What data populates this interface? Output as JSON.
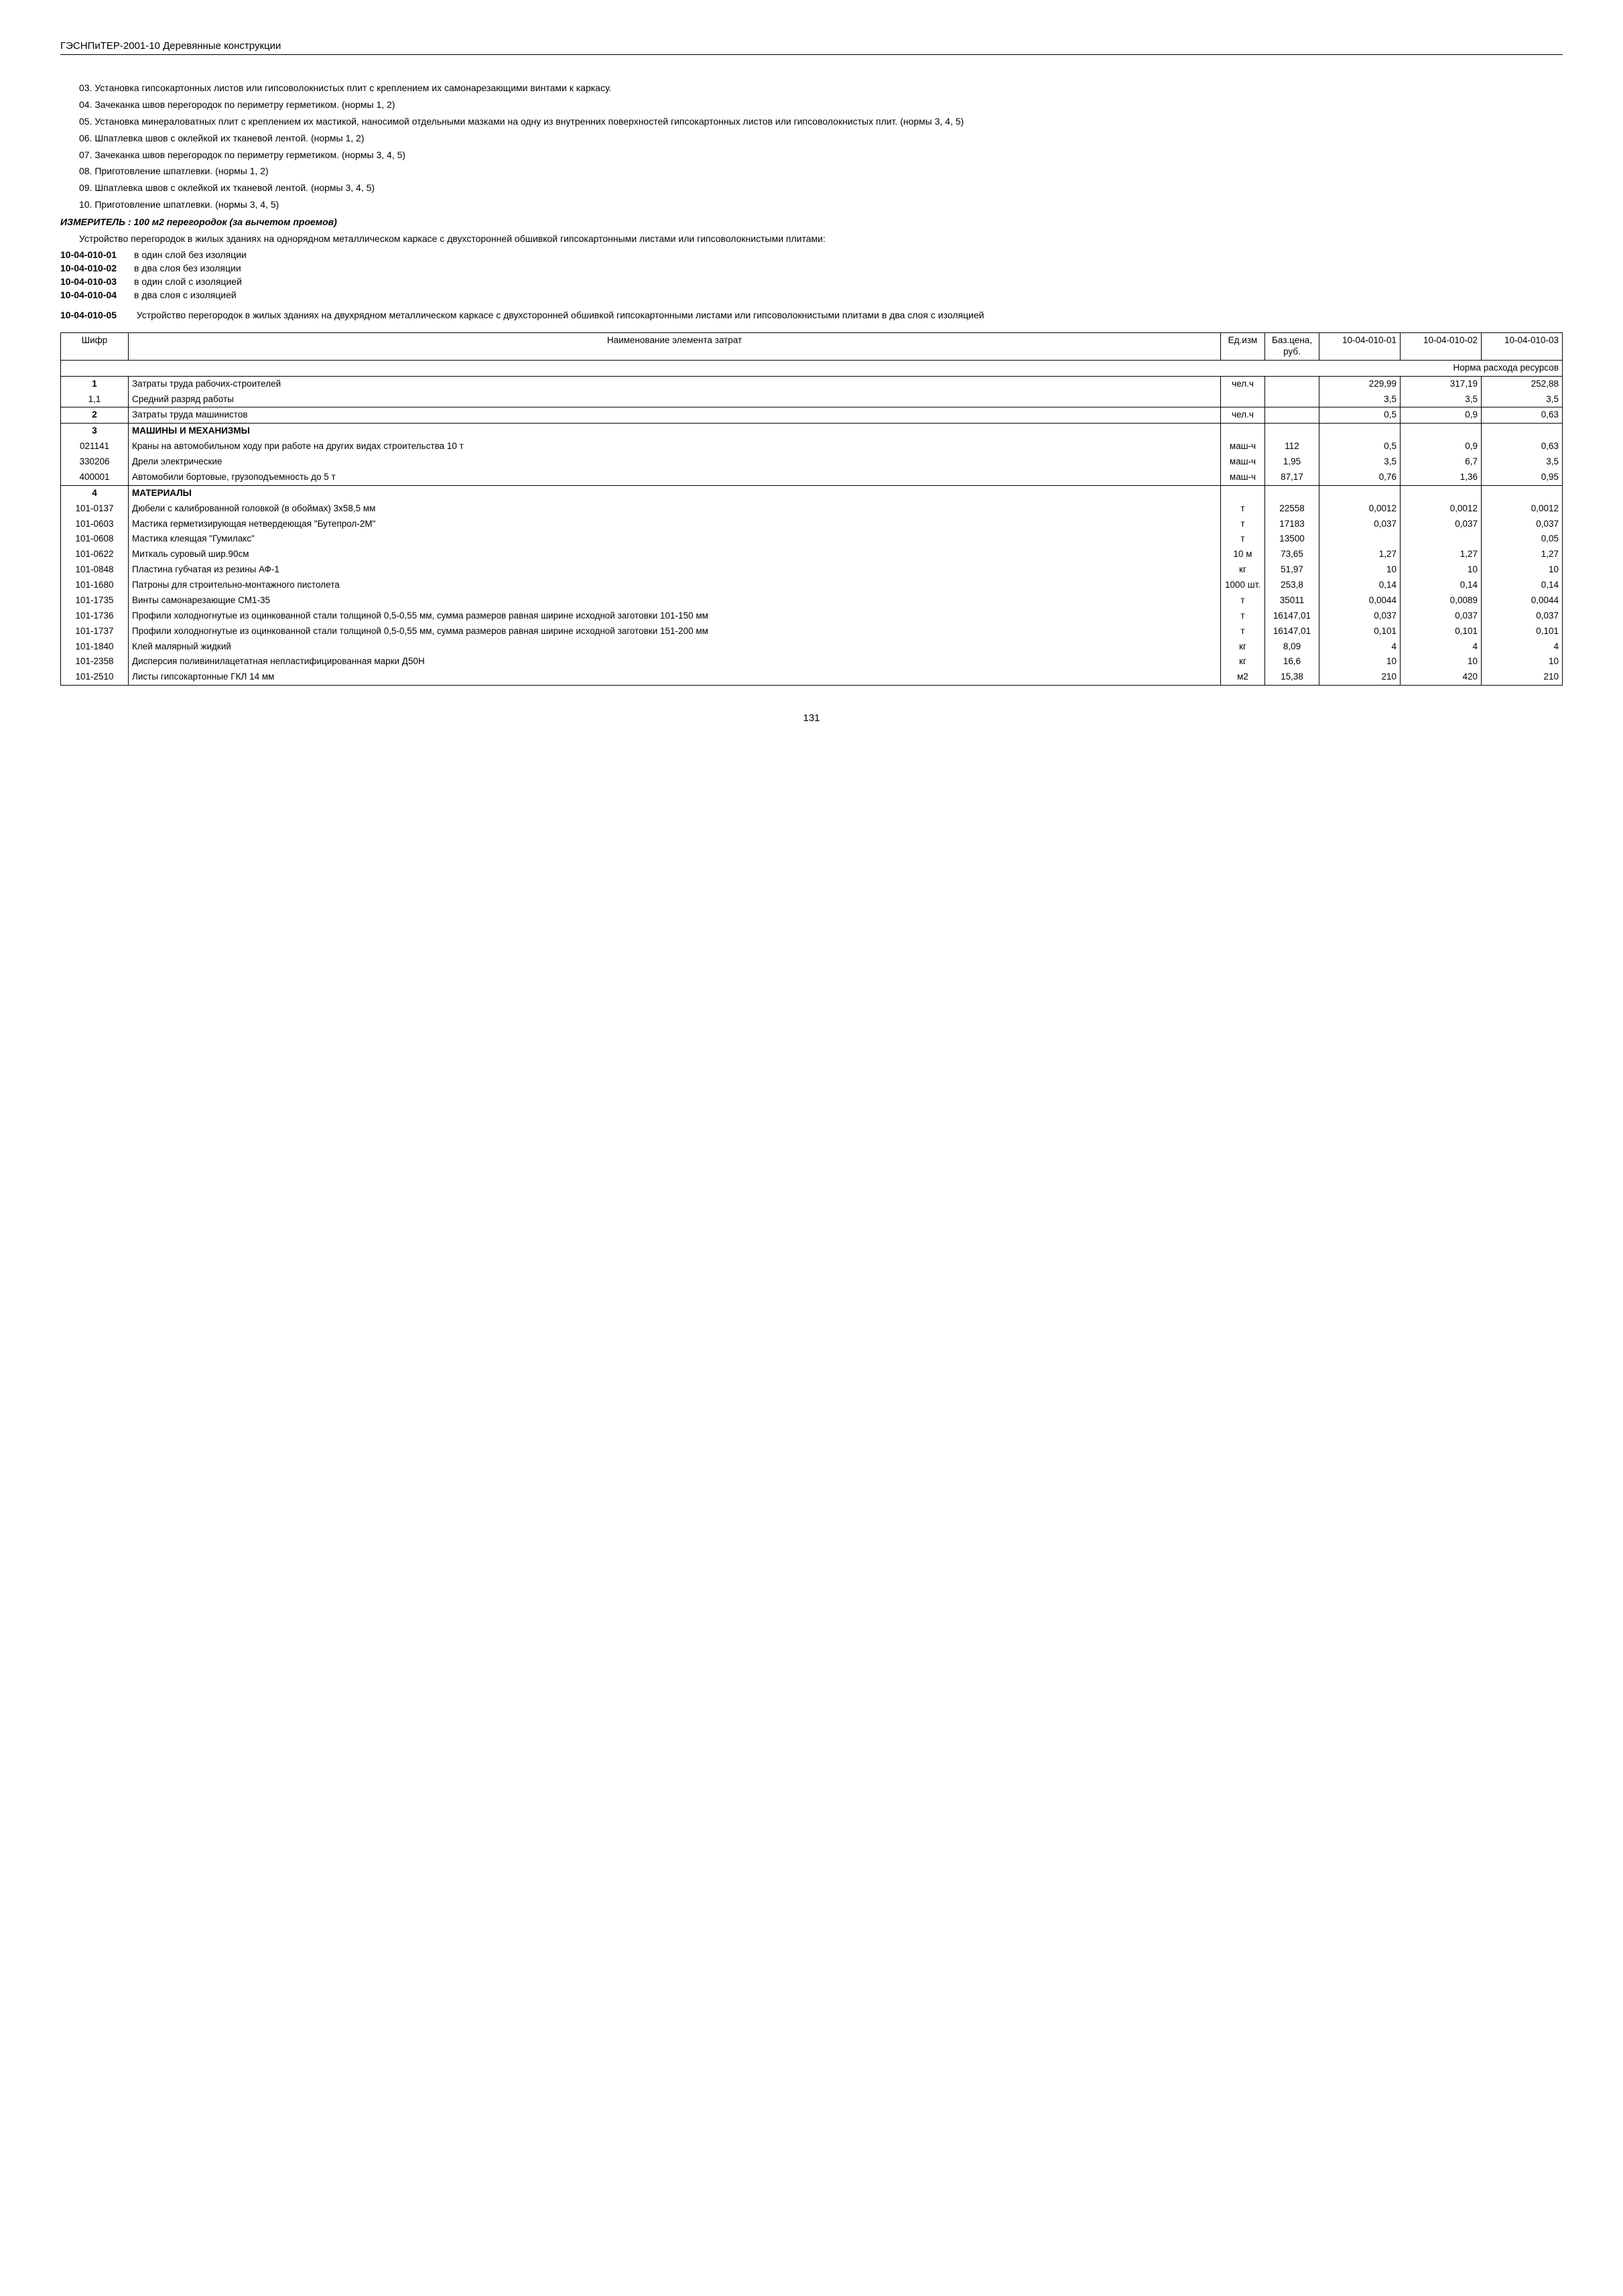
{
  "header": "ГЭСНПиТЕР-2001-10 Деревянные конструкции",
  "paragraphs": [
    "03. Установка гипсокартонных листов или гипсоволокнистых плит с креплением их самонарезающими винтами к каркасу.",
    "04. Зачеканка швов перегородок по периметру герметиком. (нормы 1, 2)",
    "05. Установка минераловатных плит с креплением их мастикой, наносимой отдельными мазками на одну из внутренних поверхностей гипсокартонных листов или гипсоволокнистых плит. (нормы 3, 4, 5)",
    "06. Шпатлевка швов с оклейкой их тканевой лентой. (нормы 1, 2)",
    "07. Зачеканка швов перегородок по периметру герметиком. (нормы 3, 4, 5)",
    "08. Приготовление шпатлевки. (нормы 1, 2)",
    "09. Шпатлевка швов с оклейкой их тканевой лентой. (нормы 3, 4, 5)",
    "10. Приготовление шпатлевки. (нормы 3, 4, 5)"
  ],
  "measure": "ИЗМЕРИТЕЛЬ : 100 м2 перегородок (за вычетом проемов)",
  "intro": "Устройство перегородок в жилых зданиях на однорядном металлическом каркасе с двухсторонней обшивкой гипсокартонными листами или гипсоволокнистыми плитами:",
  "codes": [
    {
      "code": "10-04-010-01",
      "text": "в один слой без изоляции"
    },
    {
      "code": "10-04-010-02",
      "text": "в два слоя без изоляции"
    },
    {
      "code": "10-04-010-03",
      "text": "в один слой с изоляцией"
    },
    {
      "code": "10-04-010-04",
      "text": "в два слоя с изоляцией"
    }
  ],
  "wide_code": {
    "code": "10-04-010-05",
    "text": "Устройство перегородок в жилых зданиях на двухрядном металлическом каркасе с двухсторонней обшивкой гипсокартонными листами или гипсоволокнистыми плитами в два слоя с изоляцией"
  },
  "table": {
    "headers": [
      "Шифр",
      "Наименование элемента затрат",
      "Ед.изм",
      "Баз.цена, руб.",
      "10-04-010-01",
      "10-04-010-02",
      "10-04-010-03"
    ],
    "norm_label": "Норма расхода ресурсов",
    "rows": [
      {
        "s": "1",
        "n": "Затраты труда рабочих-строителей",
        "e": "чел.ч",
        "b": "",
        "v1": "229,99",
        "v2": "317,19",
        "v3": "252,88",
        "bold": true
      },
      {
        "s": "1,1",
        "n": "Средний разряд работы",
        "e": "",
        "b": "",
        "v1": "3,5",
        "v2": "3,5",
        "v3": "3,5",
        "nobord": true
      },
      {
        "s": "2",
        "n": "Затраты труда машинистов",
        "e": "чел.ч",
        "b": "",
        "v1": "0,5",
        "v2": "0,9",
        "v3": "0,63",
        "bold": true
      },
      {
        "s": "3",
        "n": "МАШИНЫ И МЕХАНИЗМЫ",
        "e": "",
        "b": "",
        "v1": "",
        "v2": "",
        "v3": "",
        "head": true
      },
      {
        "s": "021141",
        "n": "Краны на автомобильном ходу при работе на других видах строительства 10 т",
        "e": "маш-ч",
        "b": "112",
        "v1": "0,5",
        "v2": "0,9",
        "v3": "0,63",
        "sub": true
      },
      {
        "s": "330206",
        "n": "Дрели электрические",
        "e": "маш-ч",
        "b": "1,95",
        "v1": "3,5",
        "v2": "6,7",
        "v3": "3,5",
        "sub": true
      },
      {
        "s": "400001",
        "n": "Автомобили бортовые, грузоподъемность до 5 т",
        "e": "маш-ч",
        "b": "87,17",
        "v1": "0,76",
        "v2": "1,36",
        "v3": "0,95",
        "sub": true
      },
      {
        "s": "4",
        "n": "МАТЕРИАЛЫ",
        "e": "",
        "b": "",
        "v1": "",
        "v2": "",
        "v3": "",
        "head": true
      },
      {
        "s": "101-0137",
        "n": "Дюбели с калиброванной головкой (в обоймах) 3х58,5 мм",
        "e": "т",
        "b": "22558",
        "v1": "0,0012",
        "v2": "0,0012",
        "v3": "0,0012",
        "sub": true
      },
      {
        "s": "101-0603",
        "n": "Мастика герметизирующая нетвердеющая \"Бутепрол-2М\"",
        "e": "т",
        "b": "17183",
        "v1": "0,037",
        "v2": "0,037",
        "v3": "0,037",
        "sub": true
      },
      {
        "s": "101-0608",
        "n": "Мастика клеящая \"Гумилакс\"",
        "e": "т",
        "b": "13500",
        "v1": "",
        "v2": "",
        "v3": "0,05",
        "sub": true
      },
      {
        "s": "101-0622",
        "n": "Миткаль суровый шир.90см",
        "e": "10 м",
        "b": "73,65",
        "v1": "1,27",
        "v2": "1,27",
        "v3": "1,27",
        "sub": true
      },
      {
        "s": "101-0848",
        "n": "Пластина губчатая из резины АФ-1",
        "e": "кг",
        "b": "51,97",
        "v1": "10",
        "v2": "10",
        "v3": "10",
        "sub": true
      },
      {
        "s": "101-1680",
        "n": "Патроны для строительно-монтажного пистолета",
        "e": "1000 шт.",
        "b": "253,8",
        "v1": "0,14",
        "v2": "0,14",
        "v3": "0,14",
        "sub": true
      },
      {
        "s": "101-1735",
        "n": "Винты самонарезающие СМ1-35",
        "e": "т",
        "b": "35011",
        "v1": "0,0044",
        "v2": "0,0089",
        "v3": "0,0044",
        "sub": true
      },
      {
        "s": "101-1736",
        "n": "Профили холодногнутые из оцинкованной стали толщиной 0,5-0,55 мм, сумма размеров равная ширине исходной заготовки 101-150 мм",
        "e": "т",
        "b": "16147,01",
        "v1": "0,037",
        "v2": "0,037",
        "v3": "0,037",
        "sub": true
      },
      {
        "s": "101-1737",
        "n": "Профили холодногнутые из оцинкованной стали толщиной 0,5-0,55 мм, сумма размеров равная ширине исходной заготовки 151-200 мм",
        "e": "т",
        "b": "16147,01",
        "v1": "0,101",
        "v2": "0,101",
        "v3": "0,101",
        "sub": true
      },
      {
        "s": "101-1840",
        "n": "Клей малярный жидкий",
        "e": "кг",
        "b": "8,09",
        "v1": "4",
        "v2": "4",
        "v3": "4",
        "sub": true
      },
      {
        "s": "101-2358",
        "n": "Дисперсия поливинилацетатная непластифицированная марки Д50Н",
        "e": "кг",
        "b": "16,6",
        "v1": "10",
        "v2": "10",
        "v3": "10",
        "sub": true
      },
      {
        "s": "101-2510",
        "n": "Листы гипсокартонные ГКЛ 14 мм",
        "e": "м2",
        "b": "15,38",
        "v1": "210",
        "v2": "420",
        "v3": "210",
        "sub": true
      }
    ]
  },
  "page_number": "131"
}
